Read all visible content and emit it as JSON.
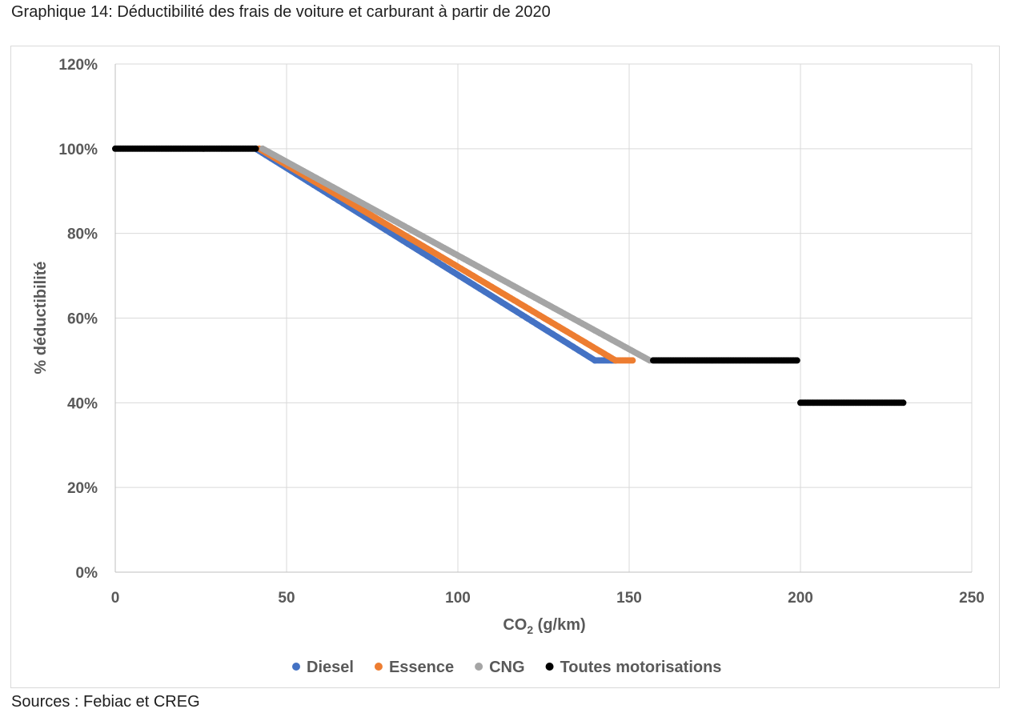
{
  "caption": "Graphique 14: Déductibilité des frais de voiture et carburant à partir de 2020",
  "source": "Sources : Febiac et CREG",
  "chart_data": {
    "type": "scatter",
    "title": "",
    "xlabel_main": "CO",
    "xlabel_sub": "2",
    "xlabel_rest": " (g/km)",
    "ylabel": "% déductibilité",
    "xlim": [
      0,
      250
    ],
    "ylim": [
      0,
      120
    ],
    "x_ticks": [
      0,
      50,
      100,
      150,
      200,
      250
    ],
    "y_ticks": [
      0,
      20,
      40,
      60,
      80,
      100,
      120
    ],
    "x_tick_labels": [
      "0",
      "50",
      "100",
      "150",
      "200",
      "250"
    ],
    "y_tick_labels": [
      "0%",
      "20%",
      "40%",
      "60%",
      "80%",
      "100%",
      "120%"
    ],
    "grid": true,
    "legend_position": "bottom",
    "series": [
      {
        "name": "Diesel",
        "color": "#4472c4",
        "segments": [
          {
            "x_start": 41,
            "x_end": 140,
            "y_start": 100,
            "y_end": 50
          },
          {
            "x_start": 140,
            "x_end": 146,
            "y_start": 50,
            "y_end": 50
          }
        ]
      },
      {
        "name": "Essence",
        "color": "#ed7d31",
        "segments": [
          {
            "x_start": 42,
            "x_end": 146,
            "y_start": 100,
            "y_end": 50
          },
          {
            "x_start": 146,
            "x_end": 151,
            "y_start": 50,
            "y_end": 50
          }
        ]
      },
      {
        "name": "CNG",
        "color": "#a5a5a5",
        "segments": [
          {
            "x_start": 43,
            "x_end": 156,
            "y_start": 100,
            "y_end": 50
          }
        ]
      },
      {
        "name": "Toutes motorisations",
        "color": "#000000",
        "segments": [
          {
            "x_start": 0,
            "x_end": 41,
            "y_start": 100,
            "y_end": 100
          },
          {
            "x_start": 157,
            "x_end": 199,
            "y_start": 50,
            "y_end": 50
          },
          {
            "x_start": 200,
            "x_end": 230,
            "y_start": 40,
            "y_end": 40
          }
        ]
      }
    ]
  }
}
